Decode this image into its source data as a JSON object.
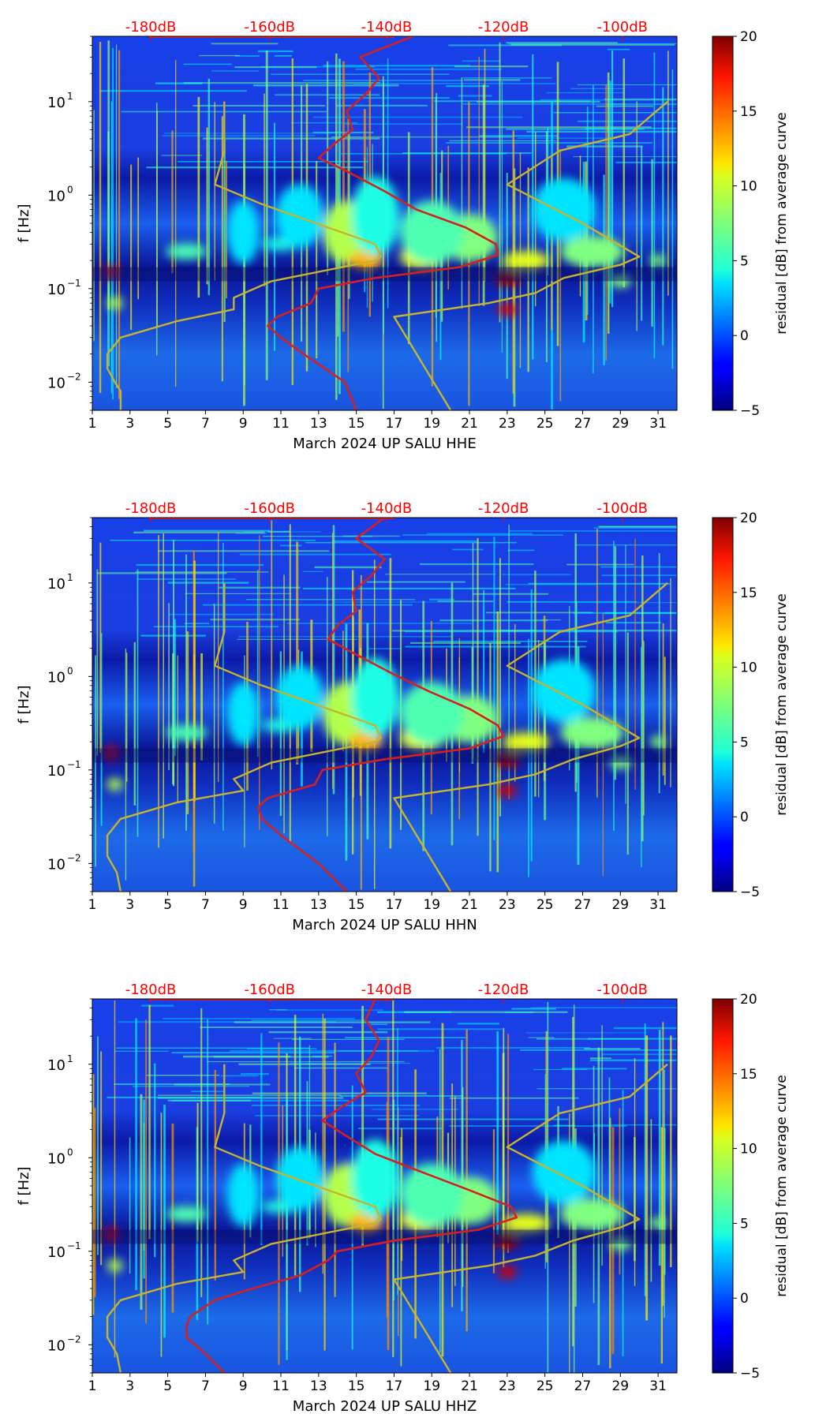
{
  "chart_data": [
    {
      "type": "heatmap",
      "subtype": "spectrogram",
      "title": "",
      "xlabel": "March 2024 UP SALU  HHE",
      "ylabel": "f [Hz]",
      "x_ticks": [
        "1",
        "3",
        "5",
        "7",
        "9",
        "11",
        "13",
        "15",
        "17",
        "19",
        "21",
        "23",
        "25",
        "27",
        "29",
        "31"
      ],
      "xlim": [
        1,
        32
      ],
      "y_scale": "log",
      "ylim": [
        0.005,
        50
      ],
      "y_ticks": [
        {
          "value": 0.01,
          "base": "10",
          "exp": "−2"
        },
        {
          "value": 0.1,
          "base": "10",
          "exp": "−1"
        },
        {
          "value": 1,
          "base": "10",
          "exp": "0"
        },
        {
          "value": 10,
          "base": "10",
          "exp": "1"
        }
      ],
      "top_axis": {
        "color": "#ff0000",
        "labels": [
          "-180dB",
          "-160dB",
          "-140dB",
          "-120dB",
          "-100dB"
        ],
        "positions_day": [
          4.1,
          10.4,
          16.6,
          22.8,
          29.1
        ]
      },
      "colorbar": {
        "label": "residual [dB] from average curve",
        "min": -5,
        "max": 20,
        "ticks": [
          "−5",
          "0",
          "5",
          "10",
          "15",
          "20"
        ],
        "colormap": "jet"
      },
      "series": [
        {
          "color": "#d62020",
          "curve": [
            [
              0.005,
              15.0
            ],
            [
              0.01,
              14.4
            ],
            [
              0.02,
              12.2
            ],
            [
              0.03,
              11.0
            ],
            [
              0.04,
              10.3
            ],
            [
              0.05,
              10.8
            ],
            [
              0.07,
              12.6
            ],
            [
              0.1,
              13.0
            ],
            [
              0.13,
              16.0
            ],
            [
              0.17,
              20.5
            ],
            [
              0.23,
              22.5
            ],
            [
              0.3,
              22.4
            ],
            [
              0.45,
              20.8
            ],
            [
              0.7,
              18.2
            ],
            [
              1.1,
              16.5
            ],
            [
              1.8,
              14.5
            ],
            [
              2.5,
              13.0
            ],
            [
              3.5,
              13.8
            ],
            [
              5,
              14.8
            ],
            [
              8,
              14.5
            ],
            [
              12,
              15.5
            ],
            [
              18,
              16.2
            ],
            [
              30,
              15.2
            ],
            [
              50,
              18.0
            ]
          ]
        },
        {
          "color": "#c7b42c",
          "curve": [
            [
              0.005,
              2.5
            ],
            [
              0.008,
              2.5
            ],
            [
              0.01,
              2.2
            ],
            [
              0.014,
              1.8
            ],
            [
              0.02,
              1.8
            ],
            [
              0.03,
              2.5
            ],
            [
              0.045,
              5.5
            ],
            [
              0.06,
              8.5
            ],
            [
              0.08,
              8.5
            ],
            [
              0.12,
              10.5
            ],
            [
              0.2,
              16.0
            ],
            [
              0.22,
              16.3
            ],
            [
              0.3,
              16.0
            ],
            [
              0.45,
              13.5
            ],
            [
              0.8,
              10.0
            ],
            [
              1.3,
              7.5
            ],
            [
              3,
              8.0
            ],
            [
              10,
              8.0
            ]
          ]
        },
        {
          "color": "#c7b42c",
          "curve": [
            [
              0.005,
              20.0
            ],
            [
              0.05,
              17.0
            ],
            [
              0.05,
              17.0
            ],
            [
              0.07,
              22.0
            ],
            [
              0.09,
              24.5
            ],
            [
              0.13,
              26.0
            ],
            [
              0.18,
              29.0
            ],
            [
              0.22,
              30.0
            ],
            [
              0.5,
              27.0
            ],
            [
              1.3,
              23.0
            ],
            [
              3,
              25.8
            ],
            [
              4.5,
              29.5
            ],
            [
              10,
              31.5
            ]
          ]
        }
      ]
    },
    {
      "type": "heatmap",
      "subtype": "spectrogram",
      "title": "",
      "xlabel": "March 2024 UP SALU  HHN",
      "ylabel": "f [Hz]",
      "x_ticks": [
        "1",
        "3",
        "5",
        "7",
        "9",
        "11",
        "13",
        "15",
        "17",
        "19",
        "21",
        "23",
        "25",
        "27",
        "29",
        "31"
      ],
      "xlim": [
        1,
        32
      ],
      "y_scale": "log",
      "ylim": [
        0.005,
        50
      ],
      "y_ticks": [
        {
          "value": 0.01,
          "base": "10",
          "exp": "−2"
        },
        {
          "value": 0.1,
          "base": "10",
          "exp": "−1"
        },
        {
          "value": 1,
          "base": "10",
          "exp": "0"
        },
        {
          "value": 10,
          "base": "10",
          "exp": "1"
        }
      ],
      "top_axis": {
        "color": "#ff0000",
        "labels": [
          "-180dB",
          "-160dB",
          "-140dB",
          "-120dB",
          "-100dB"
        ],
        "positions_day": [
          4.1,
          10.4,
          16.6,
          22.8,
          29.1
        ]
      },
      "colorbar": {
        "label": "residual [dB] from average curve",
        "min": -5,
        "max": 20,
        "ticks": [
          "−5",
          "0",
          "5",
          "10",
          "15",
          "20"
        ],
        "colormap": "jet"
      },
      "series": [
        {
          "color": "#d62020",
          "curve": [
            [
              0.005,
              14.5
            ],
            [
              0.01,
              13.0
            ],
            [
              0.02,
              11.0
            ],
            [
              0.03,
              10.0
            ],
            [
              0.04,
              9.8
            ],
            [
              0.05,
              10.3
            ],
            [
              0.07,
              12.8
            ],
            [
              0.1,
              13.2
            ],
            [
              0.13,
              16.5
            ],
            [
              0.17,
              21.0
            ],
            [
              0.23,
              22.8
            ],
            [
              0.3,
              22.5
            ],
            [
              0.45,
              21.0
            ],
            [
              0.7,
              18.8
            ],
            [
              1.1,
              16.8
            ],
            [
              1.8,
              14.8
            ],
            [
              2.5,
              13.5
            ],
            [
              3.5,
              14.0
            ],
            [
              5,
              15.0
            ],
            [
              8,
              14.8
            ],
            [
              12,
              15.8
            ],
            [
              18,
              16.5
            ],
            [
              30,
              15.0
            ],
            [
              50,
              16.5
            ]
          ]
        },
        {
          "color": "#c7b42c",
          "curve": [
            [
              0.005,
              2.5
            ],
            [
              0.008,
              2.3
            ],
            [
              0.012,
              1.8
            ],
            [
              0.02,
              1.8
            ],
            [
              0.03,
              2.5
            ],
            [
              0.045,
              5.5
            ],
            [
              0.06,
              9.0
            ],
            [
              0.08,
              8.5
            ],
            [
              0.12,
              10.5
            ],
            [
              0.2,
              16.0
            ],
            [
              0.22,
              16.3
            ],
            [
              0.3,
              16.0
            ],
            [
              0.45,
              13.5
            ],
            [
              0.8,
              10.0
            ],
            [
              1.3,
              7.5
            ],
            [
              3,
              8.0
            ],
            [
              10,
              8.0
            ]
          ]
        },
        {
          "color": "#c7b42c",
          "curve": [
            [
              0.005,
              20.0
            ],
            [
              0.05,
              17.0
            ],
            [
              0.05,
              17.0
            ],
            [
              0.07,
              22.0
            ],
            [
              0.09,
              24.5
            ],
            [
              0.13,
              26.5
            ],
            [
              0.18,
              29.0
            ],
            [
              0.22,
              30.0
            ],
            [
              0.5,
              27.0
            ],
            [
              1.3,
              23.0
            ],
            [
              3,
              25.8
            ],
            [
              4.5,
              29.5
            ],
            [
              10,
              31.5
            ]
          ]
        }
      ]
    },
    {
      "type": "heatmap",
      "subtype": "spectrogram",
      "title": "",
      "xlabel": "March 2024 UP SALU  HHZ",
      "ylabel": "f [Hz]",
      "x_ticks": [
        "1",
        "3",
        "5",
        "7",
        "9",
        "11",
        "13",
        "15",
        "17",
        "19",
        "21",
        "23",
        "25",
        "27",
        "29",
        "31"
      ],
      "xlim": [
        1,
        32
      ],
      "y_scale": "log",
      "ylim": [
        0.005,
        50
      ],
      "y_ticks": [
        {
          "value": 0.01,
          "base": "10",
          "exp": "−2"
        },
        {
          "value": 0.1,
          "base": "10",
          "exp": "−1"
        },
        {
          "value": 1,
          "base": "10",
          "exp": "0"
        },
        {
          "value": 10,
          "base": "10",
          "exp": "1"
        }
      ],
      "top_axis": {
        "color": "#ff0000",
        "labels": [
          "-180dB",
          "-160dB",
          "-140dB",
          "-120dB",
          "-100dB"
        ],
        "positions_day": [
          4.1,
          10.4,
          16.6,
          22.8,
          29.1
        ]
      },
      "colorbar": {
        "label": "residual [dB] from average curve",
        "min": -5,
        "max": 20,
        "ticks": [
          "−5",
          "0",
          "5",
          "10",
          "15",
          "20"
        ],
        "colormap": "jet"
      },
      "series": [
        {
          "color": "#d62020",
          "curve": [
            [
              0.005,
              8.0
            ],
            [
              0.008,
              7.0
            ],
            [
              0.012,
              6.0
            ],
            [
              0.016,
              6.0
            ],
            [
              0.02,
              6.2
            ],
            [
              0.03,
              7.5
            ],
            [
              0.04,
              9.5
            ],
            [
              0.055,
              12.0
            ],
            [
              0.08,
              13.5
            ],
            [
              0.1,
              14.0
            ],
            [
              0.13,
              17.0
            ],
            [
              0.17,
              21.5
            ],
            [
              0.23,
              23.5
            ],
            [
              0.3,
              23.2
            ],
            [
              0.45,
              21.0
            ],
            [
              0.7,
              18.5
            ],
            [
              1.1,
              16.0
            ],
            [
              1.8,
              14.3
            ],
            [
              2.5,
              13.2
            ],
            [
              3.5,
              14.2
            ],
            [
              5,
              15.5
            ],
            [
              8,
              15.0
            ],
            [
              12,
              15.8
            ],
            [
              18,
              16.2
            ],
            [
              30,
              15.5
            ],
            [
              50,
              16.0
            ]
          ]
        },
        {
          "color": "#c7b42c",
          "curve": [
            [
              0.005,
              2.5
            ],
            [
              0.008,
              2.3
            ],
            [
              0.012,
              1.8
            ],
            [
              0.02,
              1.8
            ],
            [
              0.03,
              2.5
            ],
            [
              0.045,
              5.5
            ],
            [
              0.06,
              9.0
            ],
            [
              0.08,
              8.5
            ],
            [
              0.12,
              10.5
            ],
            [
              0.2,
              16.0
            ],
            [
              0.22,
              16.3
            ],
            [
              0.3,
              16.0
            ],
            [
              0.45,
              13.5
            ],
            [
              0.8,
              10.0
            ],
            [
              1.3,
              7.5
            ],
            [
              3,
              8.0
            ],
            [
              10,
              8.0
            ]
          ]
        },
        {
          "color": "#c7b42c",
          "curve": [
            [
              0.005,
              20.0
            ],
            [
              0.05,
              17.0
            ],
            [
              0.05,
              17.0
            ],
            [
              0.07,
              22.0
            ],
            [
              0.09,
              24.5
            ],
            [
              0.13,
              26.5
            ],
            [
              0.18,
              29.0
            ],
            [
              0.22,
              30.0
            ],
            [
              0.5,
              27.0
            ],
            [
              1.3,
              23.0
            ],
            [
              3,
              25.8
            ],
            [
              4.5,
              29.5
            ],
            [
              10,
              31.5
            ]
          ]
        }
      ]
    }
  ]
}
